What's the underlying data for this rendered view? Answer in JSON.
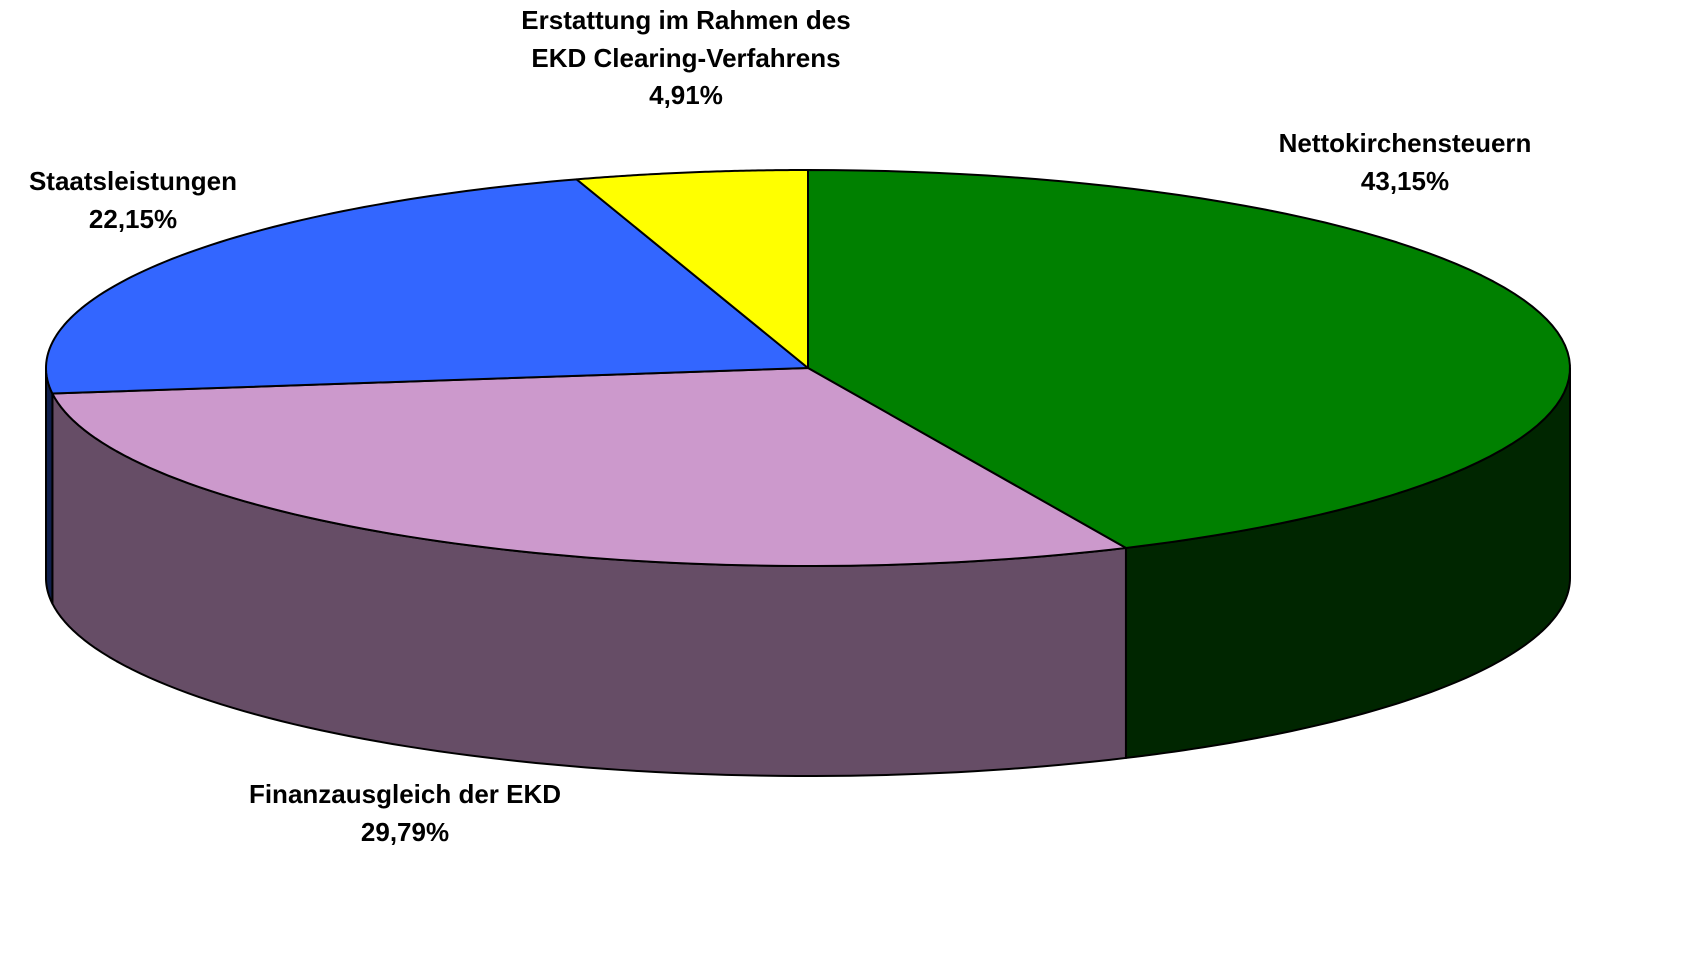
{
  "chart_data": {
    "type": "pie",
    "categories": [
      "Nettokirchensteuern",
      "Finanzausgleich der EKD",
      "Staatsleistungen",
      "Erstattung im Rahmen des EKD Clearing-Verfahrens"
    ],
    "values": [
      43.15,
      29.79,
      22.15,
      4.91
    ],
    "value_labels": [
      "43,15%",
      "29,79%",
      "22,15%",
      "4,91%"
    ],
    "colors": [
      "#008000",
      "#cc99cc",
      "#3366ff",
      "#ffff00"
    ]
  }
}
